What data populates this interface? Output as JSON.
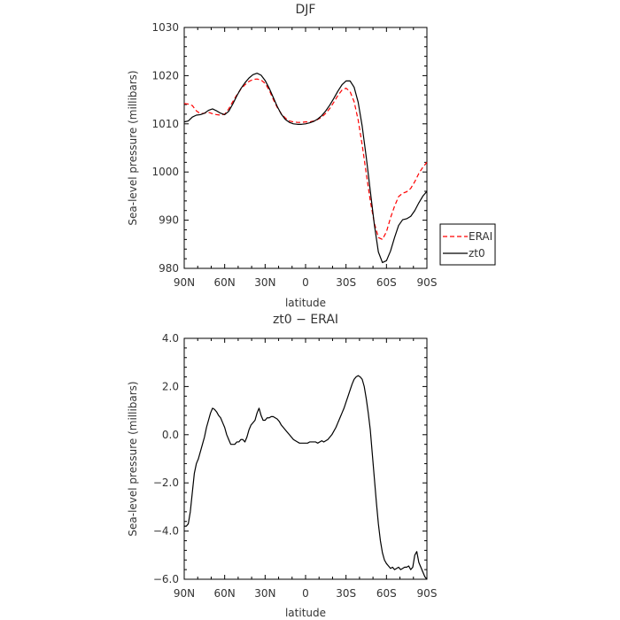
{
  "chart_data": [
    {
      "type": "line",
      "title": "DJF",
      "xlabel": "latitude",
      "ylabel": "Sea-level pressure (millibars)",
      "xlim": [
        90,
        -90
      ],
      "ylim": [
        980,
        1030
      ],
      "x_ticks": [
        90,
        60,
        30,
        0,
        -30,
        -60,
        -90
      ],
      "x_tick_labels": [
        "90N",
        "60N",
        "30N",
        "0",
        "30S",
        "60S",
        "90S"
      ],
      "y_ticks": [
        980,
        990,
        1000,
        1010,
        1020,
        1030
      ],
      "y_tick_labels": [
        "980",
        "990",
        "1000",
        "1010",
        "1020",
        "1030"
      ],
      "grid": false,
      "legend_position": "right",
      "series": [
        {
          "name": "ERAI",
          "color": "#ff0000",
          "dash": "dashed",
          "x": [
            90,
            87,
            84,
            81,
            78,
            75,
            72,
            69,
            66,
            63,
            60,
            57,
            54,
            51,
            48,
            45,
            42,
            39,
            36,
            33,
            30,
            27,
            24,
            21,
            18,
            15,
            12,
            9,
            6,
            3,
            0,
            -3,
            -6,
            -9,
            -12,
            -15,
            -18,
            -21,
            -24,
            -27,
            -30,
            -33,
            -36,
            -39,
            -42,
            -45,
            -48,
            -51,
            -54,
            -57,
            -60,
            -63,
            -66,
            -69,
            -72,
            -75,
            -78,
            -81,
            -84,
            -87,
            -90
          ],
          "y": [
            1014.2,
            1014.1,
            1013.8,
            1012.7,
            1012.1,
            1012.2,
            1012.4,
            1012.1,
            1011.9,
            1011.8,
            1012.0,
            1013.1,
            1014.6,
            1016.0,
            1017.2,
            1018.1,
            1018.8,
            1019.2,
            1019.3,
            1019.1,
            1018.4,
            1017.0,
            1015.1,
            1013.4,
            1012.1,
            1011.2,
            1010.6,
            1010.4,
            1010.3,
            1010.3,
            1010.4,
            1010.4,
            1010.6,
            1010.9,
            1011.4,
            1012.2,
            1013.2,
            1014.5,
            1015.9,
            1017.0,
            1017.4,
            1016.7,
            1014.6,
            1010.8,
            1005.6,
            999.7,
            994.0,
            989.4,
            986.4,
            986.0,
            987.6,
            990.5,
            992.9,
            994.9,
            995.6,
            995.9,
            996.6,
            998.0,
            999.7,
            1001.0,
            1002.0
          ]
        },
        {
          "name": "zt0",
          "color": "#000000",
          "dash": "solid",
          "x": [
            90,
            87,
            84,
            81,
            78,
            75,
            72,
            69,
            66,
            63,
            60,
            57,
            54,
            51,
            48,
            45,
            42,
            39,
            36,
            33,
            30,
            27,
            24,
            21,
            18,
            15,
            12,
            9,
            6,
            3,
            0,
            -3,
            -6,
            -9,
            -12,
            -15,
            -18,
            -21,
            -24,
            -27,
            -30,
            -33,
            -36,
            -39,
            -42,
            -45,
            -48,
            -51,
            -54,
            -57,
            -60,
            -63,
            -66,
            -69,
            -72,
            -75,
            -78,
            -81,
            -84,
            -87,
            -90
          ],
          "y": [
            1010.4,
            1010.6,
            1011.4,
            1011.8,
            1011.9,
            1012.2,
            1012.8,
            1013.1,
            1012.7,
            1012.2,
            1011.9,
            1012.6,
            1014.1,
            1015.8,
            1017.3,
            1018.5,
            1019.5,
            1020.2,
            1020.5,
            1020.1,
            1019.0,
            1017.4,
            1015.5,
            1013.6,
            1012.0,
            1010.9,
            1010.3,
            1010.0,
            1009.9,
            1009.9,
            1010.0,
            1010.2,
            1010.5,
            1011.0,
            1011.7,
            1012.7,
            1013.9,
            1015.3,
            1016.8,
            1018.1,
            1018.9,
            1018.9,
            1017.6,
            1014.5,
            1009.5,
            1003.1,
            996.1,
            989.1,
            983.4,
            981.2,
            981.6,
            983.6,
            986.4,
            988.9,
            990.1,
            990.3,
            990.8,
            992.0,
            993.6,
            995.0,
            996.0
          ]
        }
      ]
    },
    {
      "type": "line",
      "title": "zt0 − ERAI",
      "xlabel": "latitude",
      "ylabel": "Sea-level pressure (millibars)",
      "xlim": [
        90,
        -90
      ],
      "ylim": [
        -6.0,
        4.0
      ],
      "x_ticks": [
        90,
        60,
        30,
        0,
        -30,
        -60,
        -90
      ],
      "x_tick_labels": [
        "90N",
        "60N",
        "30N",
        "0",
        "30S",
        "60S",
        "90S"
      ],
      "y_ticks": [
        -6.0,
        -4.0,
        -2.0,
        0.0,
        2.0,
        4.0
      ],
      "y_tick_labels": [
        "−6.0",
        "−4.0",
        "−2.0",
        "0.0",
        "2.0",
        "4.0"
      ],
      "grid": false,
      "series": [
        {
          "color": "#000000",
          "dash": "solid",
          "x": [
            90,
            88.5,
            87,
            85.5,
            84,
            82.5,
            81,
            79.5,
            78,
            76.5,
            75,
            73.5,
            72,
            70.5,
            69,
            67.5,
            66,
            64.5,
            63,
            61.5,
            60,
            58.5,
            57,
            55.5,
            54,
            52.5,
            51,
            49.5,
            48,
            46.5,
            45,
            43.5,
            42,
            40.5,
            39,
            37.5,
            36,
            34.5,
            33,
            31.5,
            30,
            28.5,
            27,
            25.5,
            24,
            22.5,
            21,
            19.5,
            18,
            16.5,
            15,
            13.5,
            12,
            10.5,
            9,
            7.5,
            6,
            4.5,
            3,
            1.5,
            0,
            -1.5,
            -3,
            -4.5,
            -6,
            -7.5,
            -9,
            -10.5,
            -12,
            -13.5,
            -15,
            -16.5,
            -18,
            -19.5,
            -21,
            -22.5,
            -24,
            -25.5,
            -27,
            -28.5,
            -30,
            -31.5,
            -33,
            -34.5,
            -36,
            -37.5,
            -39,
            -40.5,
            -42,
            -43.5,
            -45,
            -46.5,
            -48,
            -49.5,
            -51,
            -52.5,
            -54,
            -55.5,
            -57,
            -58.5,
            -60,
            -61.5,
            -63,
            -64.5,
            -66,
            -67.5,
            -69,
            -70.5,
            -72,
            -73.5,
            -75,
            -76.5,
            -78,
            -79.5,
            -81,
            -82.5,
            -84,
            -85.5,
            -87,
            -88.5,
            -90
          ],
          "y": [
            -3.8,
            -3.8,
            -3.7,
            -3.2,
            -2.4,
            -1.6,
            -1.2,
            -1.0,
            -0.7,
            -0.4,
            -0.1,
            0.3,
            0.6,
            0.9,
            1.1,
            1.05,
            0.95,
            0.8,
            0.7,
            0.5,
            0.3,
            0.0,
            -0.2,
            -0.4,
            -0.4,
            -0.4,
            -0.3,
            -0.3,
            -0.2,
            -0.2,
            -0.3,
            -0.1,
            0.2,
            0.4,
            0.5,
            0.6,
            0.9,
            1.1,
            0.8,
            0.6,
            0.6,
            0.7,
            0.7,
            0.75,
            0.75,
            0.7,
            0.65,
            0.55,
            0.4,
            0.3,
            0.2,
            0.1,
            0.0,
            -0.1,
            -0.2,
            -0.25,
            -0.3,
            -0.35,
            -0.35,
            -0.35,
            -0.35,
            -0.35,
            -0.3,
            -0.3,
            -0.3,
            -0.3,
            -0.35,
            -0.3,
            -0.25,
            -0.3,
            -0.25,
            -0.2,
            -0.1,
            0.0,
            0.15,
            0.3,
            0.5,
            0.7,
            0.9,
            1.1,
            1.35,
            1.6,
            1.85,
            2.1,
            2.3,
            2.4,
            2.45,
            2.4,
            2.3,
            2.0,
            1.5,
            0.9,
            0.2,
            -0.8,
            -1.8,
            -2.8,
            -3.7,
            -4.4,
            -4.9,
            -5.2,
            -5.35,
            -5.45,
            -5.55,
            -5.5,
            -5.6,
            -5.55,
            -5.5,
            -5.6,
            -5.55,
            -5.5,
            -5.5,
            -5.45,
            -5.6,
            -5.5,
            -5.0,
            -4.85,
            -5.3,
            -5.5,
            -5.7,
            -5.9,
            -6.0
          ]
        }
      ]
    }
  ]
}
